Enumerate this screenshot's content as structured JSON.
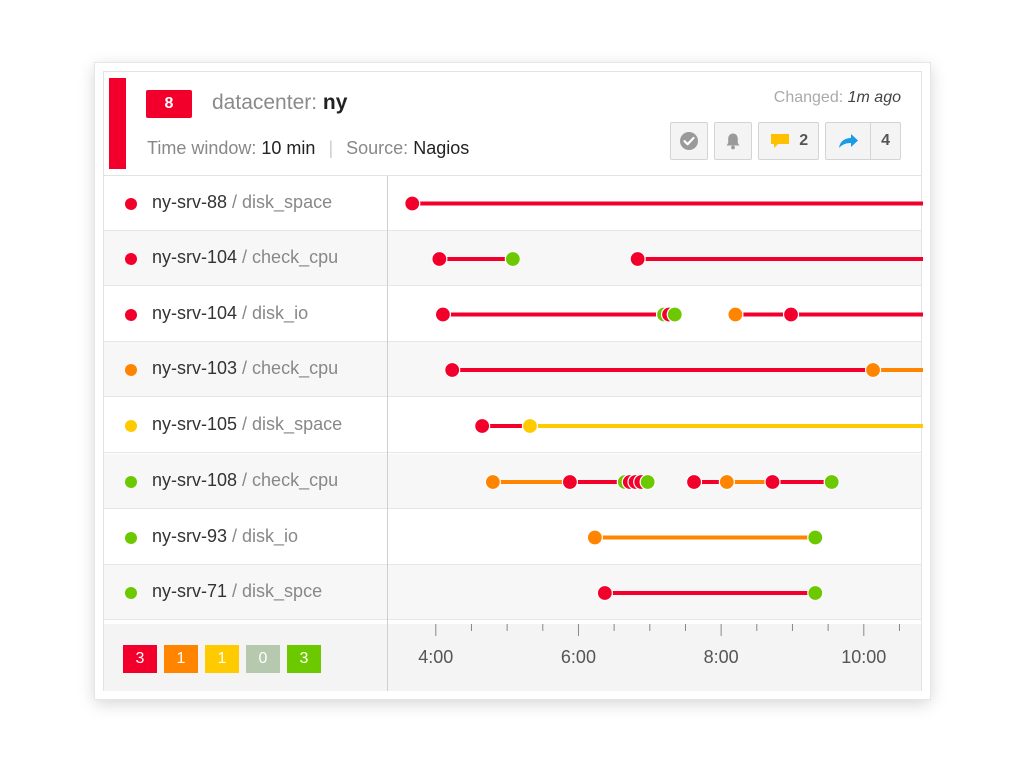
{
  "header": {
    "count": "8",
    "title_prefix": "datacenter:",
    "title_value": "ny",
    "time_window_label": "Time window:",
    "time_window_value": "10 min",
    "separator": "|",
    "source_label": "Source:",
    "source_value": "Nagios",
    "changed_label": "Changed:",
    "changed_value": "1m ago",
    "comments_count": "2",
    "shares_count": "4"
  },
  "colors": {
    "critical": "#f2002b",
    "warning": "#ff8400",
    "unknown": "#ffca00",
    "ack": "#b6c8ad",
    "ok": "#6cc900"
  },
  "rows": [
    {
      "host": "ny-srv-88",
      "service": "/ disk_space",
      "status": "critical"
    },
    {
      "host": "ny-srv-104",
      "service": "/ check_cpu",
      "status": "critical"
    },
    {
      "host": "ny-srv-104",
      "service": "/ disk_io",
      "status": "critical"
    },
    {
      "host": "ny-srv-103",
      "service": "/ check_cpu",
      "status": "warning"
    },
    {
      "host": "ny-srv-105",
      "service": "/ disk_space",
      "status": "unknown"
    },
    {
      "host": "ny-srv-108",
      "service": "/ check_cpu",
      "status": "ok"
    },
    {
      "host": "ny-srv-93",
      "service": "/ disk_io",
      "status": "ok"
    },
    {
      "host": "ny-srv-71",
      "service": "/ disk_spce",
      "status": "ok"
    }
  ],
  "footer_counts": [
    {
      "value": "3",
      "status": "critical"
    },
    {
      "value": "1",
      "status": "warning"
    },
    {
      "value": "1",
      "status": "unknown"
    },
    {
      "value": "0",
      "status": "ack"
    },
    {
      "value": "3",
      "status": "ok"
    }
  ],
  "chart_data": {
    "type": "timeline",
    "x_ticks": [
      "4:00",
      "6:00",
      "8:00",
      "10:00"
    ],
    "xlim": [
      3.33,
      10.83
    ],
    "series": [
      {
        "segments": [
          {
            "from": 3.67,
            "to": 10.83,
            "status": "critical"
          }
        ],
        "events": [
          {
            "t": 3.67,
            "status": "critical"
          }
        ]
      },
      {
        "segments": [
          {
            "from": 4.05,
            "to": 5.08,
            "status": "critical"
          },
          {
            "from": 6.83,
            "to": 10.83,
            "status": "critical"
          }
        ],
        "events": [
          {
            "t": 4.05,
            "status": "critical"
          },
          {
            "t": 5.08,
            "status": "ok"
          },
          {
            "t": 6.83,
            "status": "critical"
          }
        ]
      },
      {
        "segments": [
          {
            "from": 4.1,
            "to": 7.2,
            "status": "critical"
          },
          {
            "from": 8.2,
            "to": 8.98,
            "status": "critical"
          },
          {
            "from": 8.98,
            "to": 10.83,
            "status": "critical"
          }
        ],
        "events": [
          {
            "t": 4.1,
            "status": "critical"
          },
          {
            "t": 7.2,
            "status": "ok"
          },
          {
            "t": 7.27,
            "status": "critical"
          },
          {
            "t": 7.35,
            "status": "ok"
          },
          {
            "t": 8.2,
            "status": "warning"
          },
          {
            "t": 8.98,
            "status": "critical"
          }
        ]
      },
      {
        "segments": [
          {
            "from": 4.23,
            "to": 10.13,
            "status": "critical"
          },
          {
            "from": 10.13,
            "to": 10.83,
            "status": "warning"
          }
        ],
        "events": [
          {
            "t": 4.23,
            "status": "critical"
          },
          {
            "t": 10.13,
            "status": "warning"
          }
        ]
      },
      {
        "segments": [
          {
            "from": 4.65,
            "to": 5.32,
            "status": "critical"
          },
          {
            "from": 5.32,
            "to": 10.83,
            "status": "unknown"
          }
        ],
        "events": [
          {
            "t": 4.65,
            "status": "critical"
          },
          {
            "t": 5.32,
            "status": "unknown"
          }
        ]
      },
      {
        "segments": [
          {
            "from": 4.8,
            "to": 5.88,
            "status": "warning"
          },
          {
            "from": 5.88,
            "to": 6.65,
            "status": "critical"
          },
          {
            "from": 7.62,
            "to": 8.08,
            "status": "critical"
          },
          {
            "from": 8.08,
            "to": 8.72,
            "status": "warning"
          },
          {
            "from": 8.72,
            "to": 9.55,
            "status": "critical"
          }
        ],
        "events": [
          {
            "t": 4.8,
            "status": "warning"
          },
          {
            "t": 5.88,
            "status": "critical"
          },
          {
            "t": 6.65,
            "status": "ok"
          },
          {
            "t": 6.72,
            "status": "critical"
          },
          {
            "t": 6.8,
            "status": "critical"
          },
          {
            "t": 6.88,
            "status": "critical"
          },
          {
            "t": 6.97,
            "status": "ok"
          },
          {
            "t": 7.62,
            "status": "critical"
          },
          {
            "t": 8.08,
            "status": "warning"
          },
          {
            "t": 8.72,
            "status": "critical"
          },
          {
            "t": 9.55,
            "status": "ok"
          }
        ]
      },
      {
        "segments": [
          {
            "from": 6.23,
            "to": 9.32,
            "status": "warning"
          }
        ],
        "events": [
          {
            "t": 6.23,
            "status": "warning"
          },
          {
            "t": 9.32,
            "status": "ok"
          }
        ]
      },
      {
        "segments": [
          {
            "from": 6.37,
            "to": 9.32,
            "status": "critical"
          }
        ],
        "events": [
          {
            "t": 6.37,
            "status": "critical"
          },
          {
            "t": 9.32,
            "status": "ok"
          }
        ]
      }
    ]
  }
}
